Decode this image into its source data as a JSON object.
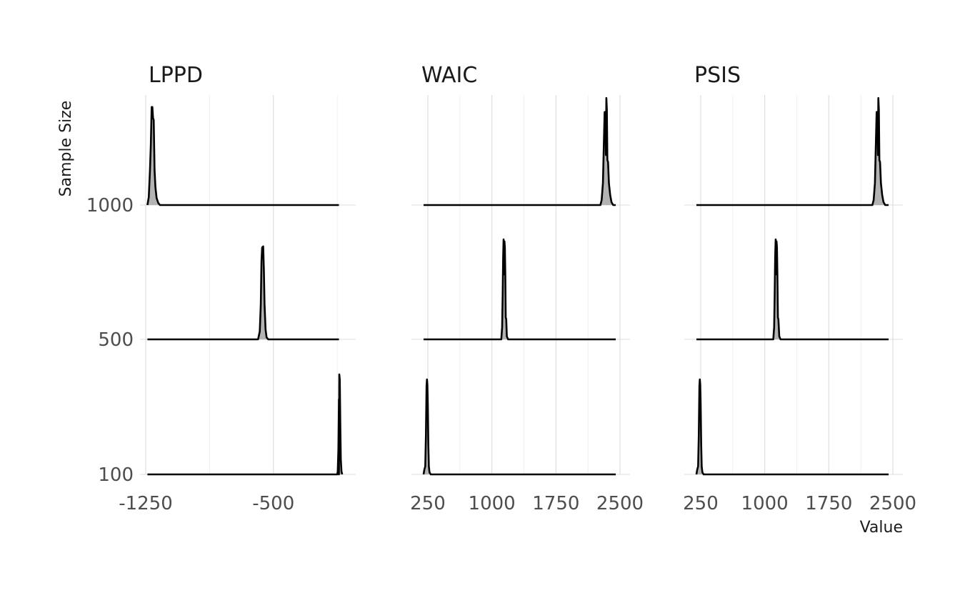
{
  "chart_data": {
    "type": "ridgeline",
    "xlabel": "Value",
    "ylabel": "Sample Size",
    "y_categories": [
      "100",
      "500",
      "1000"
    ],
    "grid": true,
    "panels": [
      {
        "title": "LPPD",
        "xlim": [
          -1250,
          -50
        ],
        "x_ticks": [
          -1250,
          -500
        ],
        "x_tick_labels": [
          "-1250",
          "-500"
        ],
        "series": [
          {
            "sample_size": "100",
            "x_start": -1240,
            "x_end": -115,
            "peak": {
              "x": [
                -125,
                -122,
                -118,
                -115,
                -113,
                -110,
                -107,
                -104,
                -100,
                -96
              ],
              "y": [
                0,
                0.03,
                0.25,
                0.75,
                1.0,
                0.95,
                0.5,
                0.15,
                0.03,
                0
              ]
            }
          },
          {
            "sample_size": "500",
            "x_start": -1240,
            "x_end": -115,
            "peak": {
              "x": [
                -590,
                -580,
                -574,
                -570,
                -566,
                -563,
                -560,
                -556,
                -552,
                -546,
                -540,
                -530
              ],
              "y": [
                0,
                0.08,
                0.35,
                0.78,
                0.92,
                0.82,
                0.93,
                0.7,
                0.35,
                0.1,
                0.02,
                0
              ]
            }
          },
          {
            "sample_size": "1000",
            "x_start": -1240,
            "x_end": -115,
            "peak": {
              "x": [
                -1240,
                -1232,
                -1225,
                -1220,
                -1215,
                -1211,
                -1207,
                -1203,
                -1198,
                -1193,
                -1186,
                -1176,
                -1166
              ],
              "y": [
                0,
                0.08,
                0.35,
                0.6,
                0.98,
                0.98,
                0.87,
                0.85,
                0.35,
                0.18,
                0.07,
                0.02,
                0
              ]
            }
          }
        ]
      },
      {
        "title": "WAIC",
        "xlim": [
          125,
          2550
        ],
        "x_ticks": [
          250,
          1000,
          1750,
          2500
        ],
        "x_tick_labels": [
          "250",
          "1000",
          "1750",
          "2500"
        ],
        "series": [
          {
            "sample_size": "100",
            "x_start": 200,
            "x_end": 2450,
            "peak": {
              "x": [
                200,
                210,
                220,
                228,
                235,
                240,
                245,
                250,
                256,
                262,
                270,
                285
              ],
              "y": [
                0,
                0.05,
                0.08,
                0.4,
                0.88,
                0.95,
                0.9,
                0.7,
                0.3,
                0.08,
                0.02,
                0
              ]
            }
          },
          {
            "sample_size": "500",
            "x_start": 200,
            "x_end": 2450,
            "peak": {
              "x": [
                1110,
                1120,
                1126,
                1132,
                1137,
                1142,
                1147,
                1152,
                1157,
                1162,
                1168,
                1175,
                1190
              ],
              "y": [
                0,
                0.12,
                0.42,
                0.82,
                1.0,
                0.65,
                0.98,
                0.92,
                0.65,
                0.22,
                0.2,
                0.03,
                0
              ]
            }
          },
          {
            "sample_size": "1000",
            "x_start": 200,
            "x_end": 2450,
            "peak": {
              "x": [
                2270,
                2285,
                2300,
                2310,
                2320,
                2328,
                2335,
                2340,
                2346,
                2352,
                2360,
                2370,
                2385,
                2400,
                2420
              ],
              "y": [
                0,
                0.05,
                0.22,
                0.58,
                0.93,
                0.93,
                0.5,
                1.07,
                0.95,
                0.45,
                0.43,
                0.22,
                0.1,
                0.03,
                0
              ]
            }
          }
        ]
      },
      {
        "title": "PSIS",
        "xlim": [
          125,
          2550
        ],
        "x_ticks": [
          250,
          1000,
          1750,
          2500
        ],
        "x_tick_labels": [
          "250",
          "1000",
          "1750",
          "2500"
        ],
        "series": [
          {
            "sample_size": "100",
            "x_start": 200,
            "x_end": 2450,
            "peak": {
              "x": [
                200,
                210,
                220,
                228,
                235,
                240,
                245,
                250,
                256,
                262,
                270,
                285
              ],
              "y": [
                0,
                0.05,
                0.08,
                0.4,
                0.88,
                0.95,
                0.9,
                0.7,
                0.3,
                0.08,
                0.02,
                0
              ]
            }
          },
          {
            "sample_size": "500",
            "x_start": 200,
            "x_end": 2450,
            "peak": {
              "x": [
                1100,
                1110,
                1116,
                1122,
                1128,
                1133,
                1138,
                1143,
                1148,
                1154,
                1160,
                1170,
                1185
              ],
              "y": [
                0,
                0.12,
                0.42,
                0.82,
                1.0,
                0.65,
                0.98,
                0.92,
                0.65,
                0.22,
                0.2,
                0.03,
                0
              ]
            }
          },
          {
            "sample_size": "1000",
            "x_start": 200,
            "x_end": 2450,
            "peak": {
              "x": [
                2260,
                2275,
                2290,
                2300,
                2310,
                2318,
                2325,
                2330,
                2336,
                2342,
                2350,
                2360,
                2375,
                2390,
                2410
              ],
              "y": [
                0,
                0.05,
                0.22,
                0.58,
                0.93,
                0.93,
                0.5,
                1.07,
                0.95,
                0.45,
                0.43,
                0.22,
                0.1,
                0.03,
                0
              ]
            }
          }
        ]
      }
    ]
  }
}
